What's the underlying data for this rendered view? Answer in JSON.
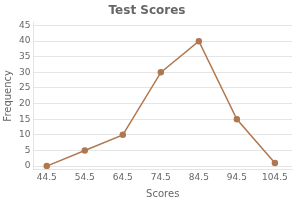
{
  "chart_data": {
    "type": "line",
    "title": "Test Scores",
    "xlabel": "Scores",
    "ylabel": "Frequency",
    "x": [
      44.5,
      54.5,
      64.5,
      74.5,
      84.5,
      94.5,
      104.5
    ],
    "values": [
      0,
      5,
      10,
      30,
      40,
      15,
      1
    ],
    "color": "#b07850",
    "marker": "circle",
    "xlim": [
      41,
      109
    ],
    "ylim": [
      -1,
      46
    ],
    "xticks": [
      44.5,
      54.5,
      64.5,
      74.5,
      84.5,
      94.5,
      104.5
    ],
    "yticks": [
      0,
      5,
      10,
      15,
      20,
      25,
      30,
      35,
      40,
      45
    ],
    "grid": "y"
  }
}
